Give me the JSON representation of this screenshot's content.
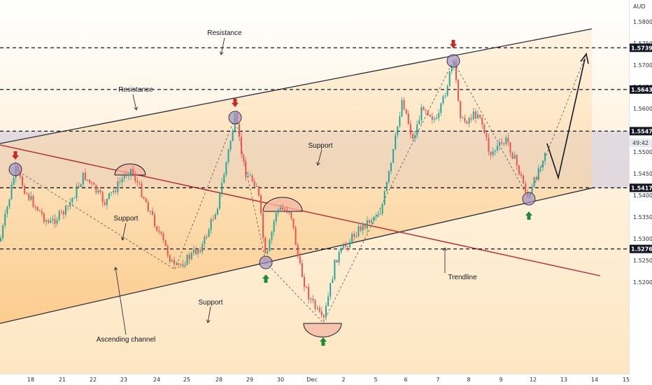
{
  "chart_data": {
    "type": "candlestick",
    "currency": "AUD",
    "last_price_label": "49:42",
    "y_ticks": [
      "1.58000",
      "1.57500",
      "1.57000",
      "1.56500",
      "1.56000",
      "1.55500",
      "1.55000",
      "1.54500",
      "1.54000",
      "1.53500",
      "1.53000",
      "1.52500",
      "1.52000"
    ],
    "x_ticks": [
      "18",
      "21",
      "22",
      "23",
      "24",
      "25",
      "28",
      "29",
      "30",
      "Dec",
      "2",
      "5",
      "6",
      "7",
      "8",
      "9",
      "12",
      "13",
      "14",
      "15"
    ],
    "ylim": [
      1.5186,
      1.5815
    ],
    "levels": [
      {
        "name": "resistance-top",
        "value": 1.57399,
        "label": "1.57399"
      },
      {
        "name": "resistance-mid",
        "value": 1.56437,
        "label": "1.56437"
      },
      {
        "name": "support-upper",
        "value": 1.55478,
        "label": "1.55478"
      },
      {
        "name": "support-lower",
        "value": 1.54172,
        "label": "1.54172"
      },
      {
        "name": "support-bottom",
        "value": 1.52764,
        "label": "1.52764"
      }
    ],
    "annotations": [
      "Resistance",
      "Resistance",
      "Support",
      "Support",
      "Support",
      "Trendline",
      "Ascending channel"
    ],
    "colors": {
      "up": "#26a69a",
      "down": "#ef5350",
      "channel": "#2a2e39",
      "trendline": "#b22833",
      "zone": "#c9c4dc",
      "channel_fill": "#fcd9a8",
      "arrow_down": "#c62828",
      "arrow_up": "#1b8a3a",
      "circle": "#9b8ec4"
    }
  }
}
